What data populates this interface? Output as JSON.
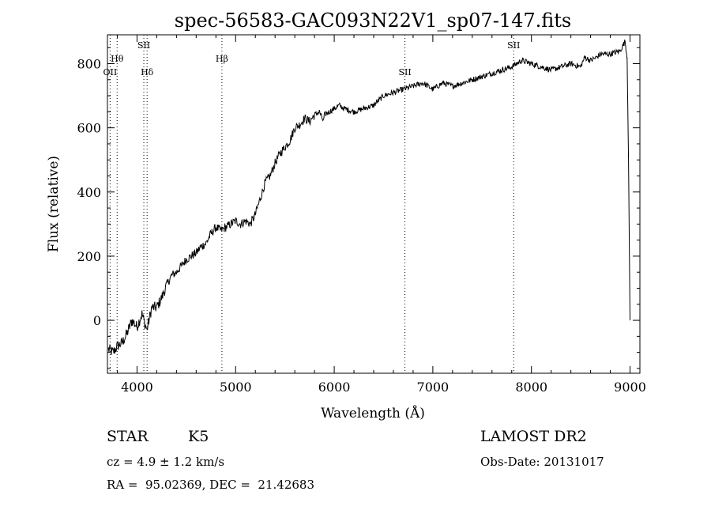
{
  "chart_data": {
    "type": "line",
    "title": "spec-56583-GAC093N22V1_sp07-147.fits",
    "xlabel": "Wavelength (Å)",
    "ylabel": "Flux (relative)",
    "xlim": [
      3700,
      9100
    ],
    "ylim": [
      -165,
      890
    ],
    "x_ticks": [
      4000,
      5000,
      6000,
      7000,
      8000,
      9000
    ],
    "y_ticks": [
      0,
      200,
      400,
      600,
      800
    ],
    "grid": false,
    "line_color": "#000000",
    "marker_line_style": "dotted",
    "spectral_lines": [
      {
        "name": "OII",
        "wavelength": 3727
      },
      {
        "name": "Hθ",
        "wavelength": 3798
      },
      {
        "name": "SII",
        "wavelength": 4069
      },
      {
        "name": "Hδ",
        "wavelength": 4102
      },
      {
        "name": "Hβ",
        "wavelength": 4861
      },
      {
        "name": "SII",
        "wavelength": 6717
      },
      {
        "name": "SII",
        "wavelength": 7820
      }
    ],
    "series": [
      {
        "x": [
          3710,
          3760,
          3800,
          3850,
          3900,
          3950,
          4000,
          4050,
          4100,
          4150,
          4200,
          4250,
          4300,
          4350,
          4400,
          4450,
          4500,
          4550,
          4600,
          4650,
          4700,
          4750,
          4800,
          4850,
          4900,
          4950,
          5000,
          5050,
          5100,
          5150,
          5200,
          5250,
          5300,
          5350,
          5400,
          5450,
          5500,
          5550,
          5600,
          5650,
          5700,
          5750,
          5800,
          5850,
          5890,
          5900,
          5950,
          6000,
          6050,
          6100,
          6200,
          6300,
          6400,
          6500,
          6600,
          6700,
          6800,
          6900,
          7000,
          7100,
          7200,
          7300,
          7400,
          7500,
          7600,
          7700,
          7800,
          7900,
          8000,
          8100,
          8200,
          8300,
          8400,
          8498,
          8540,
          8600,
          8662,
          8700,
          8800,
          8900,
          8950,
          8970,
          8985,
          9000
        ],
        "y": [
          -90,
          -100,
          -80,
          -70,
          -40,
          0,
          -20,
          20,
          -30,
          40,
          40,
          70,
          110,
          140,
          150,
          170,
          190,
          200,
          210,
          230,
          240,
          270,
          290,
          280,
          290,
          300,
          310,
          300,
          310,
          300,
          330,
          380,
          430,
          450,
          490,
          520,
          540,
          560,
          600,
          610,
          630,
          620,
          640,
          650,
          620,
          640,
          650,
          660,
          670,
          660,
          650,
          660,
          670,
          700,
          710,
          720,
          730,
          740,
          720,
          740,
          730,
          740,
          750,
          760,
          770,
          780,
          790,
          810,
          800,
          790,
          780,
          790,
          800,
          790,
          820,
          810,
          820,
          830,
          830,
          840,
          870,
          820,
          500,
          0
        ]
      }
    ]
  },
  "info": {
    "object_class": "STAR",
    "subclass": "K5",
    "redshift": "cz = 4.9 ± 1.2 km/s",
    "coords": "RA =  95.02369, DEC =  21.42683",
    "survey": "LAMOST DR2",
    "obs_date": "Obs-Date: 20131017"
  }
}
